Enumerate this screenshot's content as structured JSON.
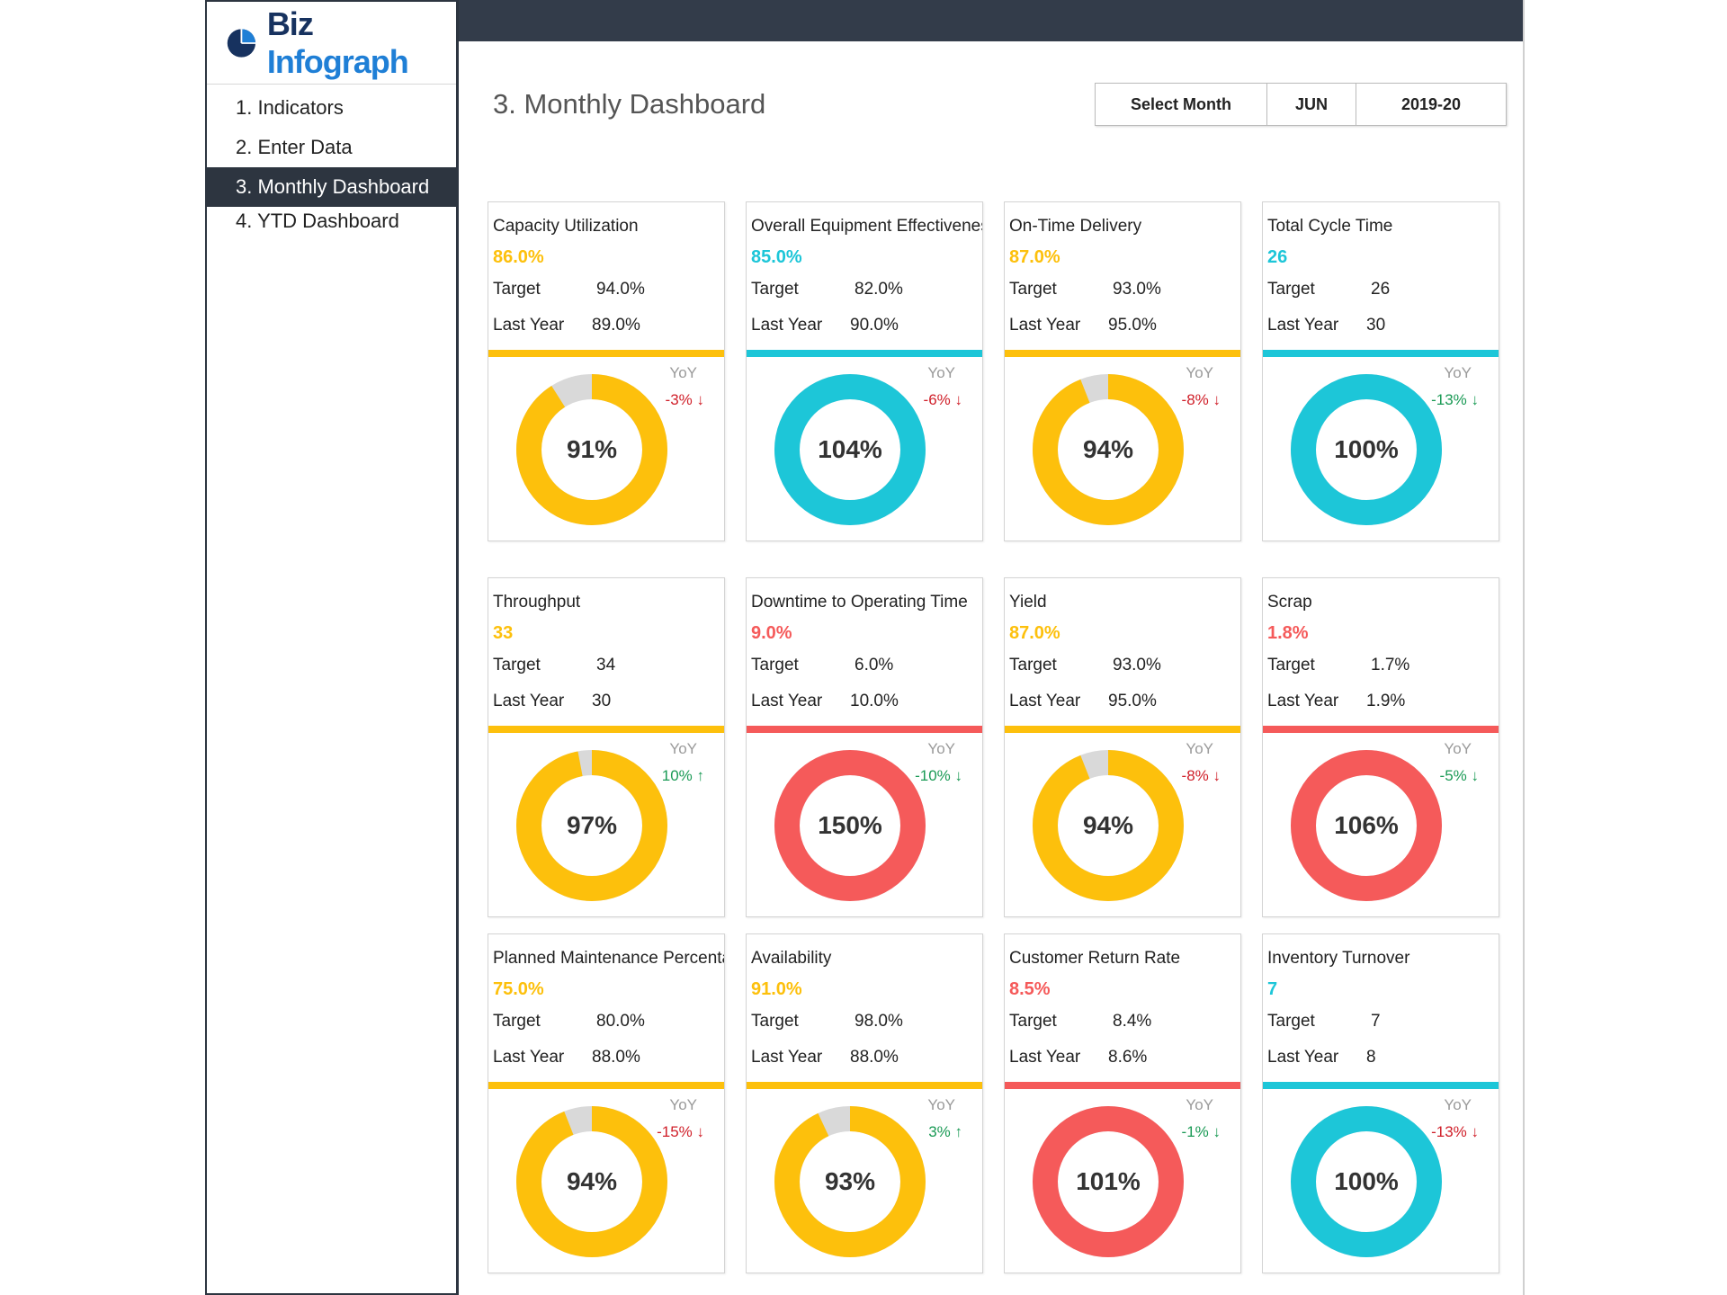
{
  "brand": {
    "part1": "Biz",
    "part2": "Infograph"
  },
  "nav": {
    "items": [
      {
        "label": "1. Indicators",
        "active": false
      },
      {
        "label": "2. Enter Data",
        "active": false
      },
      {
        "label": "3. Monthly Dashboard",
        "active": true
      },
      {
        "label": "4. YTD Dashboard",
        "active": false
      }
    ]
  },
  "header": {
    "title": "3. Monthly Dashboard",
    "select_label": "Select Month",
    "month": "JUN",
    "year": "2019-20"
  },
  "labels": {
    "target": "Target",
    "last_year": "Last Year",
    "yoy": "YoY"
  },
  "colors": {
    "yellow": "#fdc00c",
    "cyan": "#1dc6d8",
    "red": "#f55a5a",
    "gray": "#d9d9d9",
    "green": "#1a9a55",
    "down_red": "#d0202a",
    "dark": "#2d3540"
  },
  "cards": [
    {
      "name": "Capacity Utilization",
      "value": "86.0%",
      "target": "94.0%",
      "last_year": "89.0%",
      "yoy": "-3% ↓",
      "yoy_color": "down_red",
      "percent": "91%",
      "fill": 0.91,
      "color": "yellow"
    },
    {
      "name": "Overall Equipment Effectiveness",
      "value": "85.0%",
      "target": "82.0%",
      "last_year": "90.0%",
      "yoy": "-6% ↓",
      "yoy_color": "down_red",
      "percent": "104%",
      "fill": 1.0,
      "color": "cyan"
    },
    {
      "name": "On-Time Delivery",
      "value": "87.0%",
      "target": "93.0%",
      "last_year": "95.0%",
      "yoy": "-8% ↓",
      "yoy_color": "down_red",
      "percent": "94%",
      "fill": 0.94,
      "color": "yellow"
    },
    {
      "name": "Total Cycle Time",
      "value": "26",
      "target": "26",
      "last_year": "30",
      "yoy": "-13% ↓",
      "yoy_color": "green",
      "percent": "100%",
      "fill": 1.0,
      "color": "cyan"
    },
    {
      "name": "Throughput",
      "value": "33",
      "target": "34",
      "last_year": "30",
      "yoy": "10% ↑",
      "yoy_color": "green",
      "percent": "97%",
      "fill": 0.97,
      "color": "yellow"
    },
    {
      "name": "Downtime to Operating Time",
      "value": "9.0%",
      "target": "6.0%",
      "last_year": "10.0%",
      "yoy": "-10% ↓",
      "yoy_color": "green",
      "percent": "150%",
      "fill": 1.0,
      "color": "red"
    },
    {
      "name": "Yield",
      "value": "87.0%",
      "target": "93.0%",
      "last_year": "95.0%",
      "yoy": "-8% ↓",
      "yoy_color": "down_red",
      "percent": "94%",
      "fill": 0.94,
      "color": "yellow"
    },
    {
      "name": "Scrap",
      "value": "1.8%",
      "target": "1.7%",
      "last_year": "1.9%",
      "yoy": "-5% ↓",
      "yoy_color": "green",
      "percent": "106%",
      "fill": 1.0,
      "color": "red"
    },
    {
      "name": "Planned Maintenance Percentage",
      "value": "75.0%",
      "target": "80.0%",
      "last_year": "88.0%",
      "yoy": "-15% ↓",
      "yoy_color": "down_red",
      "percent": "94%",
      "fill": 0.94,
      "color": "yellow"
    },
    {
      "name": "Availability",
      "value": "91.0%",
      "target": "98.0%",
      "last_year": "88.0%",
      "yoy": "3% ↑",
      "yoy_color": "green",
      "percent": "93%",
      "fill": 0.93,
      "color": "yellow"
    },
    {
      "name": "Customer Return Rate",
      "value": "8.5%",
      "target": "8.4%",
      "last_year": "8.6%",
      "yoy": "-1% ↓",
      "yoy_color": "green",
      "percent": "101%",
      "fill": 1.0,
      "color": "red"
    },
    {
      "name": "Inventory Turnover",
      "value": "7",
      "target": "7",
      "last_year": "8",
      "yoy": "-13% ↓",
      "yoy_color": "down_red",
      "percent": "100%",
      "fill": 1.0,
      "color": "cyan"
    }
  ]
}
